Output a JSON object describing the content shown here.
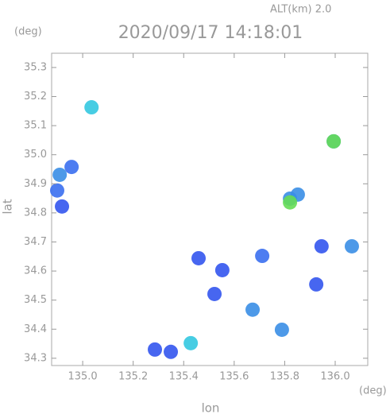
{
  "chart_data": {
    "type": "scatter",
    "title": "2020/09/17 14:18:01",
    "subtitle": "ALT(km)  2.0",
    "x_label": "lon",
    "y_label": "lat",
    "x_unit": "(deg)",
    "y_unit": "(deg)",
    "xlim": [
      134.877,
      136.129
    ],
    "ylim": [
      34.275,
      35.349
    ],
    "xticks": [
      {
        "value": 135.0,
        "label": "135.0"
      },
      135.2,
      135.4,
      135.6,
      135.8,
      {
        "value": 136.0,
        "label": "136.0"
      }
    ],
    "yticks": [
      34.3,
      34.4,
      34.5,
      34.6,
      34.7,
      34.8,
      34.9,
      {
        "value": 35.0,
        "label": "35.0"
      },
      35.1,
      35.2,
      35.3
    ],
    "x": [
      134.909,
      134.956,
      134.899,
      134.918,
      135.994,
      135.821,
      135.852,
      136.066,
      135.789,
      135.673,
      135.711,
      135.553,
      135.522,
      135.459,
      135.286,
      135.349,
      135.428,
      135.035,
      135.925,
      135.946,
      135.821,
      135.994
    ],
    "y": [
      34.931,
      34.958,
      34.877,
      34.822,
      35.046,
      34.849,
      34.863,
      34.685,
      34.398,
      34.467,
      34.652,
      34.603,
      34.521,
      34.644,
      34.33,
      34.322,
      34.352,
      35.163,
      34.554,
      34.685,
      34.836,
      35.046
    ],
    "colors": [
      "#3a8ee6",
      "#3a6ff0",
      "#3a6ff0",
      "#3355ee",
      "#3a8ee6",
      "#3a8ee6",
      "#3a8ee6",
      "#3a8ee6",
      "#3a8ee6",
      "#3a8ee6",
      "#3a6ff0",
      "#3355ee",
      "#3355ee",
      "#3355ee",
      "#3355ee",
      "#3355ee",
      "#33c8e0",
      "#33c8e0",
      "#3355ee",
      "#3355ee",
      "#66dd55",
      "#66dd55"
    ]
  }
}
